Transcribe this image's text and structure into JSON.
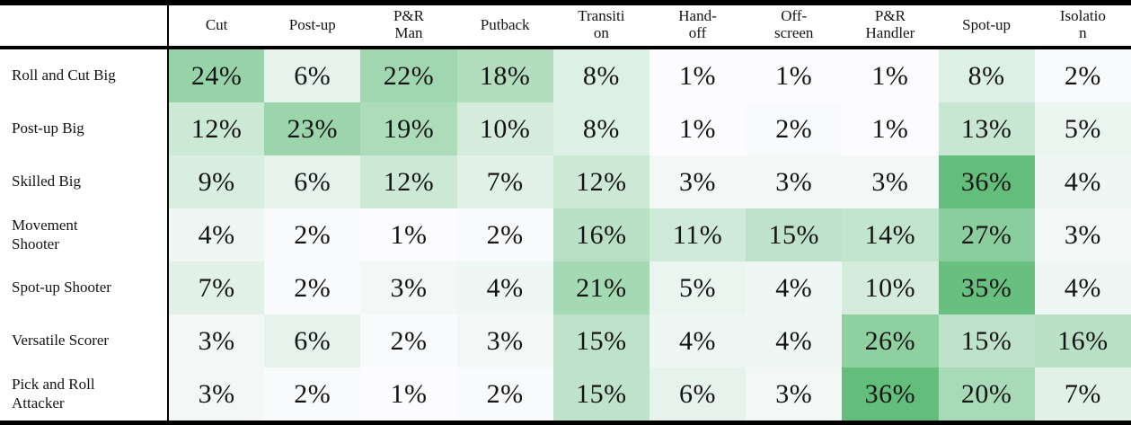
{
  "chart_data": {
    "type": "heatmap",
    "value_unit": "%",
    "columns": [
      {
        "name": "Cut",
        "display": "Cut"
      },
      {
        "name": "Post-up",
        "display": "Post-up"
      },
      {
        "name": "P&R Man",
        "display": "P&R\nMan"
      },
      {
        "name": "Putback",
        "display": "Putback"
      },
      {
        "name": "Transition",
        "display": "Transiti\non"
      },
      {
        "name": "Hand-off",
        "display": "Hand-\noff"
      },
      {
        "name": "Off-screen",
        "display": "Off-\nscreen"
      },
      {
        "name": "P&R Handler",
        "display": "P&R\nHandler"
      },
      {
        "name": "Spot-up",
        "display": "Spot-up"
      },
      {
        "name": "Isolation",
        "display": "Isolatio\nn"
      }
    ],
    "rows": [
      {
        "label": "Roll and Cut Big",
        "values": [
          24,
          6,
          22,
          18,
          8,
          1,
          1,
          1,
          8,
          2
        ]
      },
      {
        "label": "Post-up Big",
        "values": [
          12,
          23,
          19,
          10,
          8,
          1,
          2,
          1,
          13,
          5
        ]
      },
      {
        "label": "Skilled Big",
        "values": [
          9,
          6,
          12,
          7,
          12,
          3,
          3,
          3,
          36,
          4
        ]
      },
      {
        "label": "Movement\nShooter",
        "values": [
          4,
          2,
          1,
          2,
          16,
          11,
          15,
          14,
          27,
          3
        ]
      },
      {
        "label": "Spot-up Shooter",
        "values": [
          7,
          2,
          3,
          4,
          21,
          5,
          4,
          10,
          35,
          4
        ]
      },
      {
        "label": "Versatile Scorer",
        "values": [
          3,
          6,
          2,
          3,
          15,
          4,
          4,
          26,
          15,
          16
        ]
      },
      {
        "label": "Pick and Roll\nAttacker",
        "values": [
          3,
          2,
          1,
          2,
          15,
          6,
          3,
          36,
          20,
          7
        ]
      }
    ],
    "color_scale": {
      "min_value": 1,
      "max_value": 36,
      "min_color": "#FCFCFF",
      "max_color": "#63BE7B"
    },
    "layout": {
      "grid": "off",
      "borders": "horizontal rules top/header/bottom, vertical rule after row labels"
    }
  }
}
